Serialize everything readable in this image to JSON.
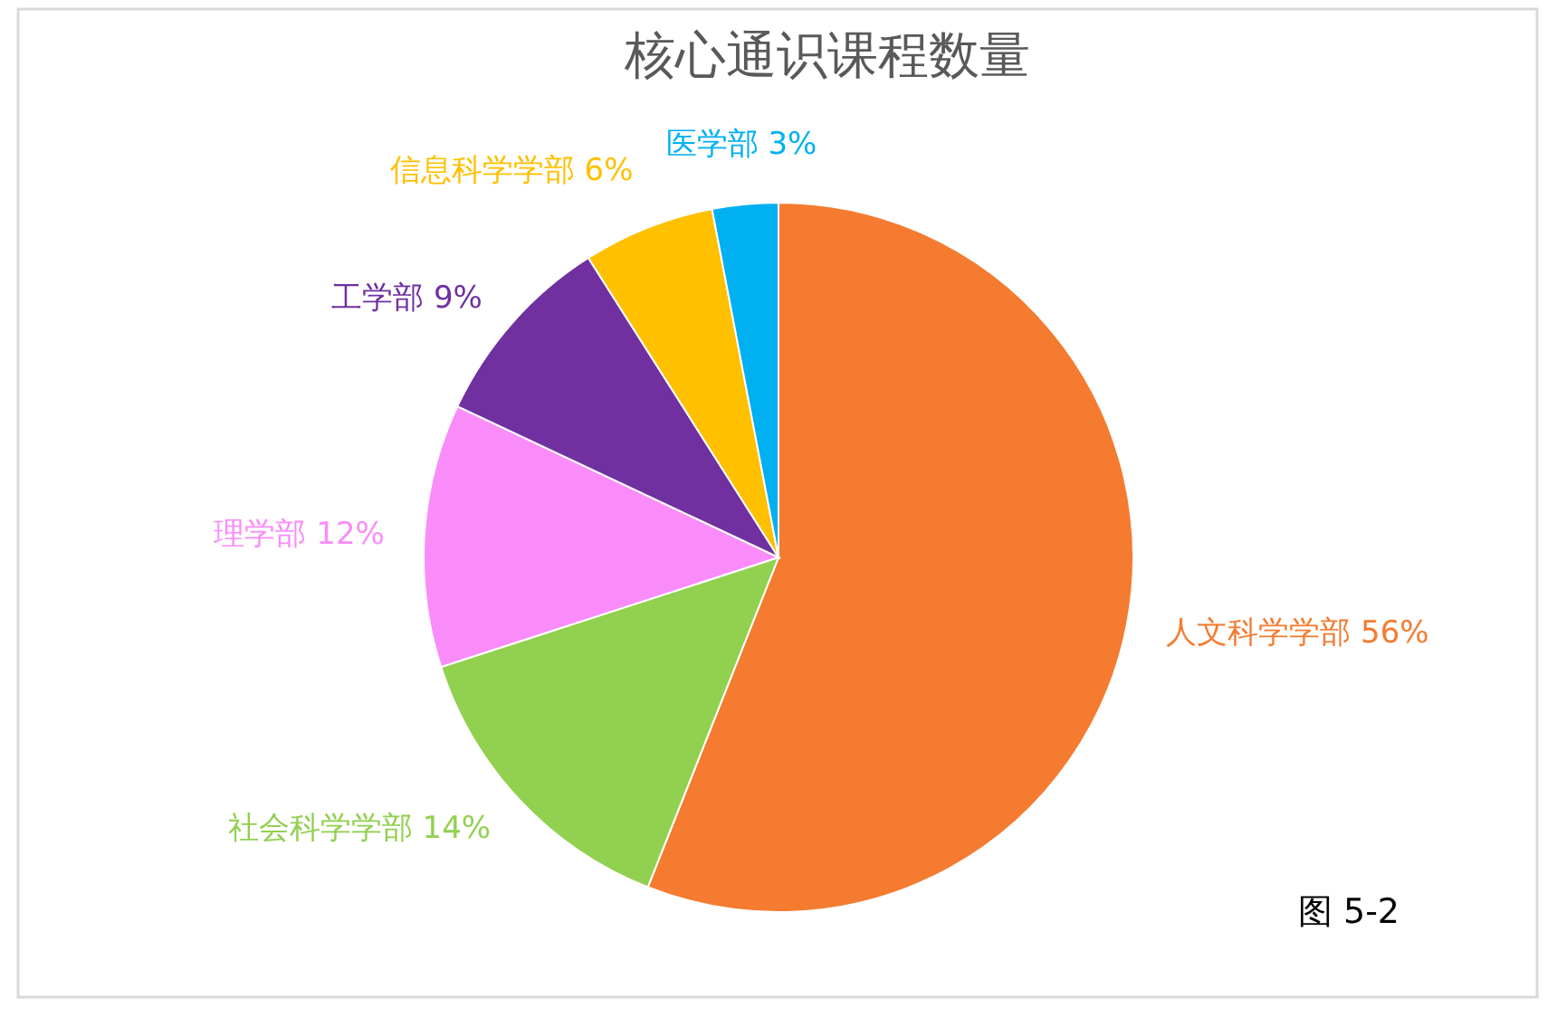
{
  "chart_data": {
    "type": "pie",
    "title": "核心通识课程数量",
    "categories": [
      "人文科学学部",
      "社会科学学部",
      "理学部",
      "工学部",
      "信息科学学部",
      "医学部"
    ],
    "values": [
      56,
      14,
      12,
      9,
      6,
      3
    ],
    "colors": [
      "#f47b30",
      "#92d050",
      "#fa8cfa",
      "#7030a0",
      "#ffc000",
      "#00b0f0"
    ],
    "value_labels": [
      "56%",
      "14%",
      "12%",
      "9%",
      "6%",
      "3%"
    ],
    "annotations": [
      "图 5-2"
    ]
  }
}
